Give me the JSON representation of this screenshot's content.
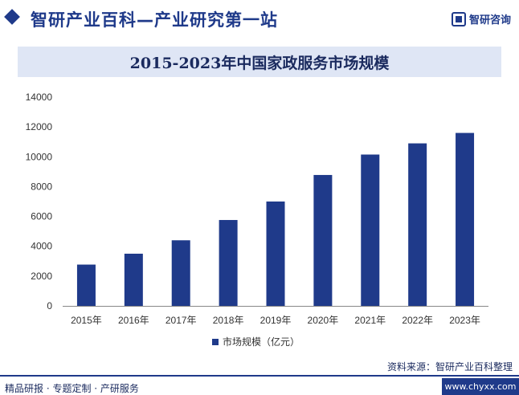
{
  "header": {
    "title": "智研产业百科—产业研究第一站",
    "logo_text": "智研咨询"
  },
  "chart_data": {
    "type": "bar",
    "title": "2015-2023年中国家政服务市场规模",
    "categories": [
      "2015年",
      "2016年",
      "2017年",
      "2018年",
      "2019年",
      "2020年",
      "2021年",
      "2022年",
      "2023年"
    ],
    "series": [
      {
        "name": "市场规模（亿元）",
        "values": [
          2770,
          3500,
          4400,
          5760,
          7000,
          8780,
          10150,
          10900,
          11600
        ]
      }
    ],
    "ylim": [
      0,
      14000
    ],
    "yticks": [
      "0",
      "2000",
      "4000",
      "6000",
      "8000",
      "10000",
      "12000",
      "14000"
    ],
    "xlabel": "",
    "ylabel": "",
    "grid": false,
    "legend_position": "bottom",
    "bar_color": "#1f3a8a"
  },
  "footer": {
    "source": "资料来源：智研产业百科整理",
    "left_text": "精品研报 · 专题定制 · 产研服务",
    "url": "www.chyxx.com"
  }
}
